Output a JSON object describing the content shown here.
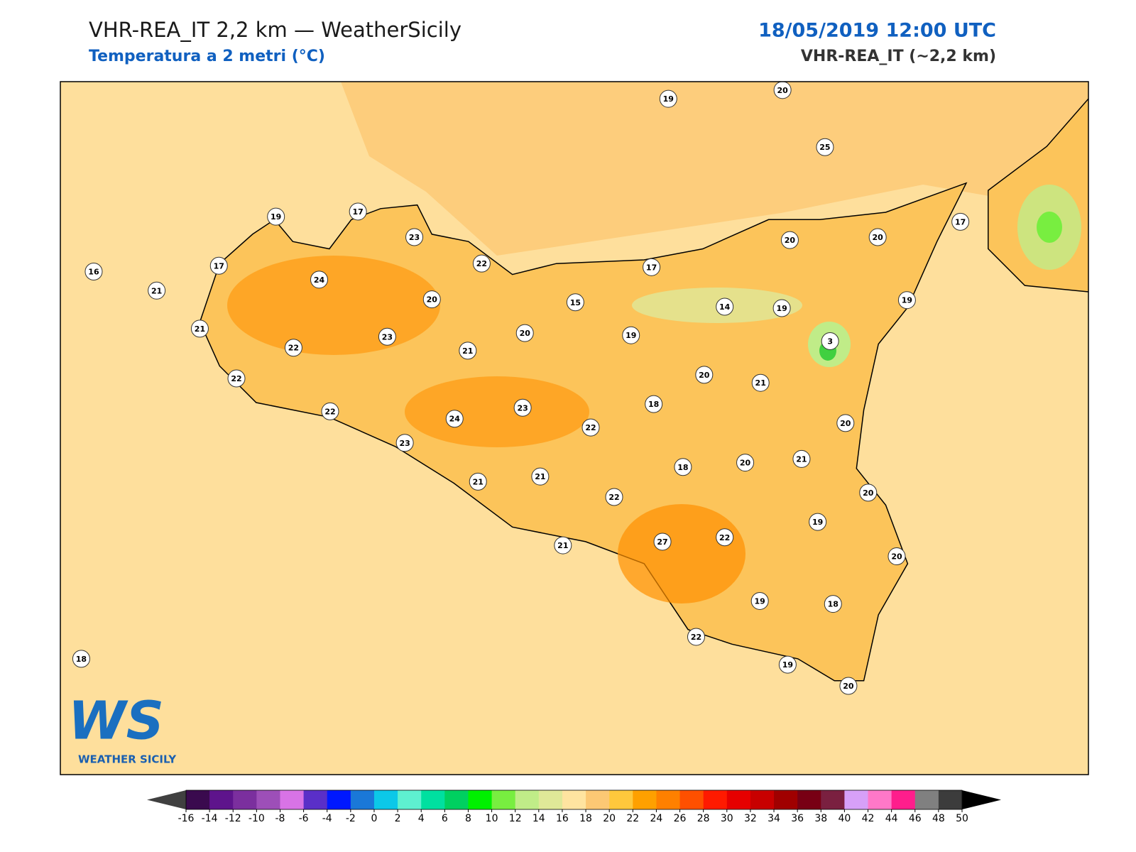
{
  "header": {
    "title": "VHR-REA_IT 2,2 km — WeatherSicily",
    "subtitle": "Temperatura a 2 metri (°C)",
    "datetime": "18/05/2019 12:00 UTC",
    "model": "VHR-REA_IT (~2,2 km)"
  },
  "stations": [
    16,
    21,
    21,
    17,
    19,
    17,
    23,
    24,
    22,
    22,
    22,
    23,
    20,
    22,
    21,
    20,
    15,
    17,
    19,
    23,
    24,
    23,
    21,
    21,
    22,
    22,
    21,
    27,
    18,
    18,
    20,
    14,
    19,
    3,
    21,
    20,
    22,
    21,
    20,
    20,
    19,
    20,
    18,
    19,
    22,
    19,
    20,
    18,
    19,
    20,
    25,
    20,
    20,
    17,
    19
  ],
  "colorbar": {
    "ticks": [
      -16,
      -14,
      -12,
      -10,
      -8,
      -6,
      -4,
      -2,
      0,
      2,
      4,
      6,
      8,
      10,
      12,
      14,
      16,
      18,
      20,
      22,
      24,
      26,
      28,
      30,
      32,
      34,
      36,
      38,
      40,
      42,
      44,
      46,
      48,
      50
    ],
    "colors": [
      "#3a0a4e",
      "#5e148c",
      "#7b2f9e",
      "#9d4fb8",
      "#d873e6",
      "#5a2fc8",
      "#0018ff",
      "#1a78d8",
      "#0cc8e8",
      "#5ef0d0",
      "#00e0a0",
      "#00d060",
      "#00f000",
      "#78ee40",
      "#c0ec88",
      "#dfe898",
      "#ffe4a0",
      "#fcc874",
      "#ffc83c",
      "#ffa000",
      "#ff8000",
      "#ff5000",
      "#ff1a00",
      "#e60000",
      "#c80000",
      "#a00000",
      "#780014",
      "#7a2040",
      "#d7a0f8",
      "#ff78c8",
      "#ff1e8c",
      "#808080",
      "#3c3c3c"
    ],
    "under_color": "#404040",
    "over_color": "#000000"
  },
  "logo": {
    "mark": "WS",
    "text": "WEATHER SICILY"
  }
}
